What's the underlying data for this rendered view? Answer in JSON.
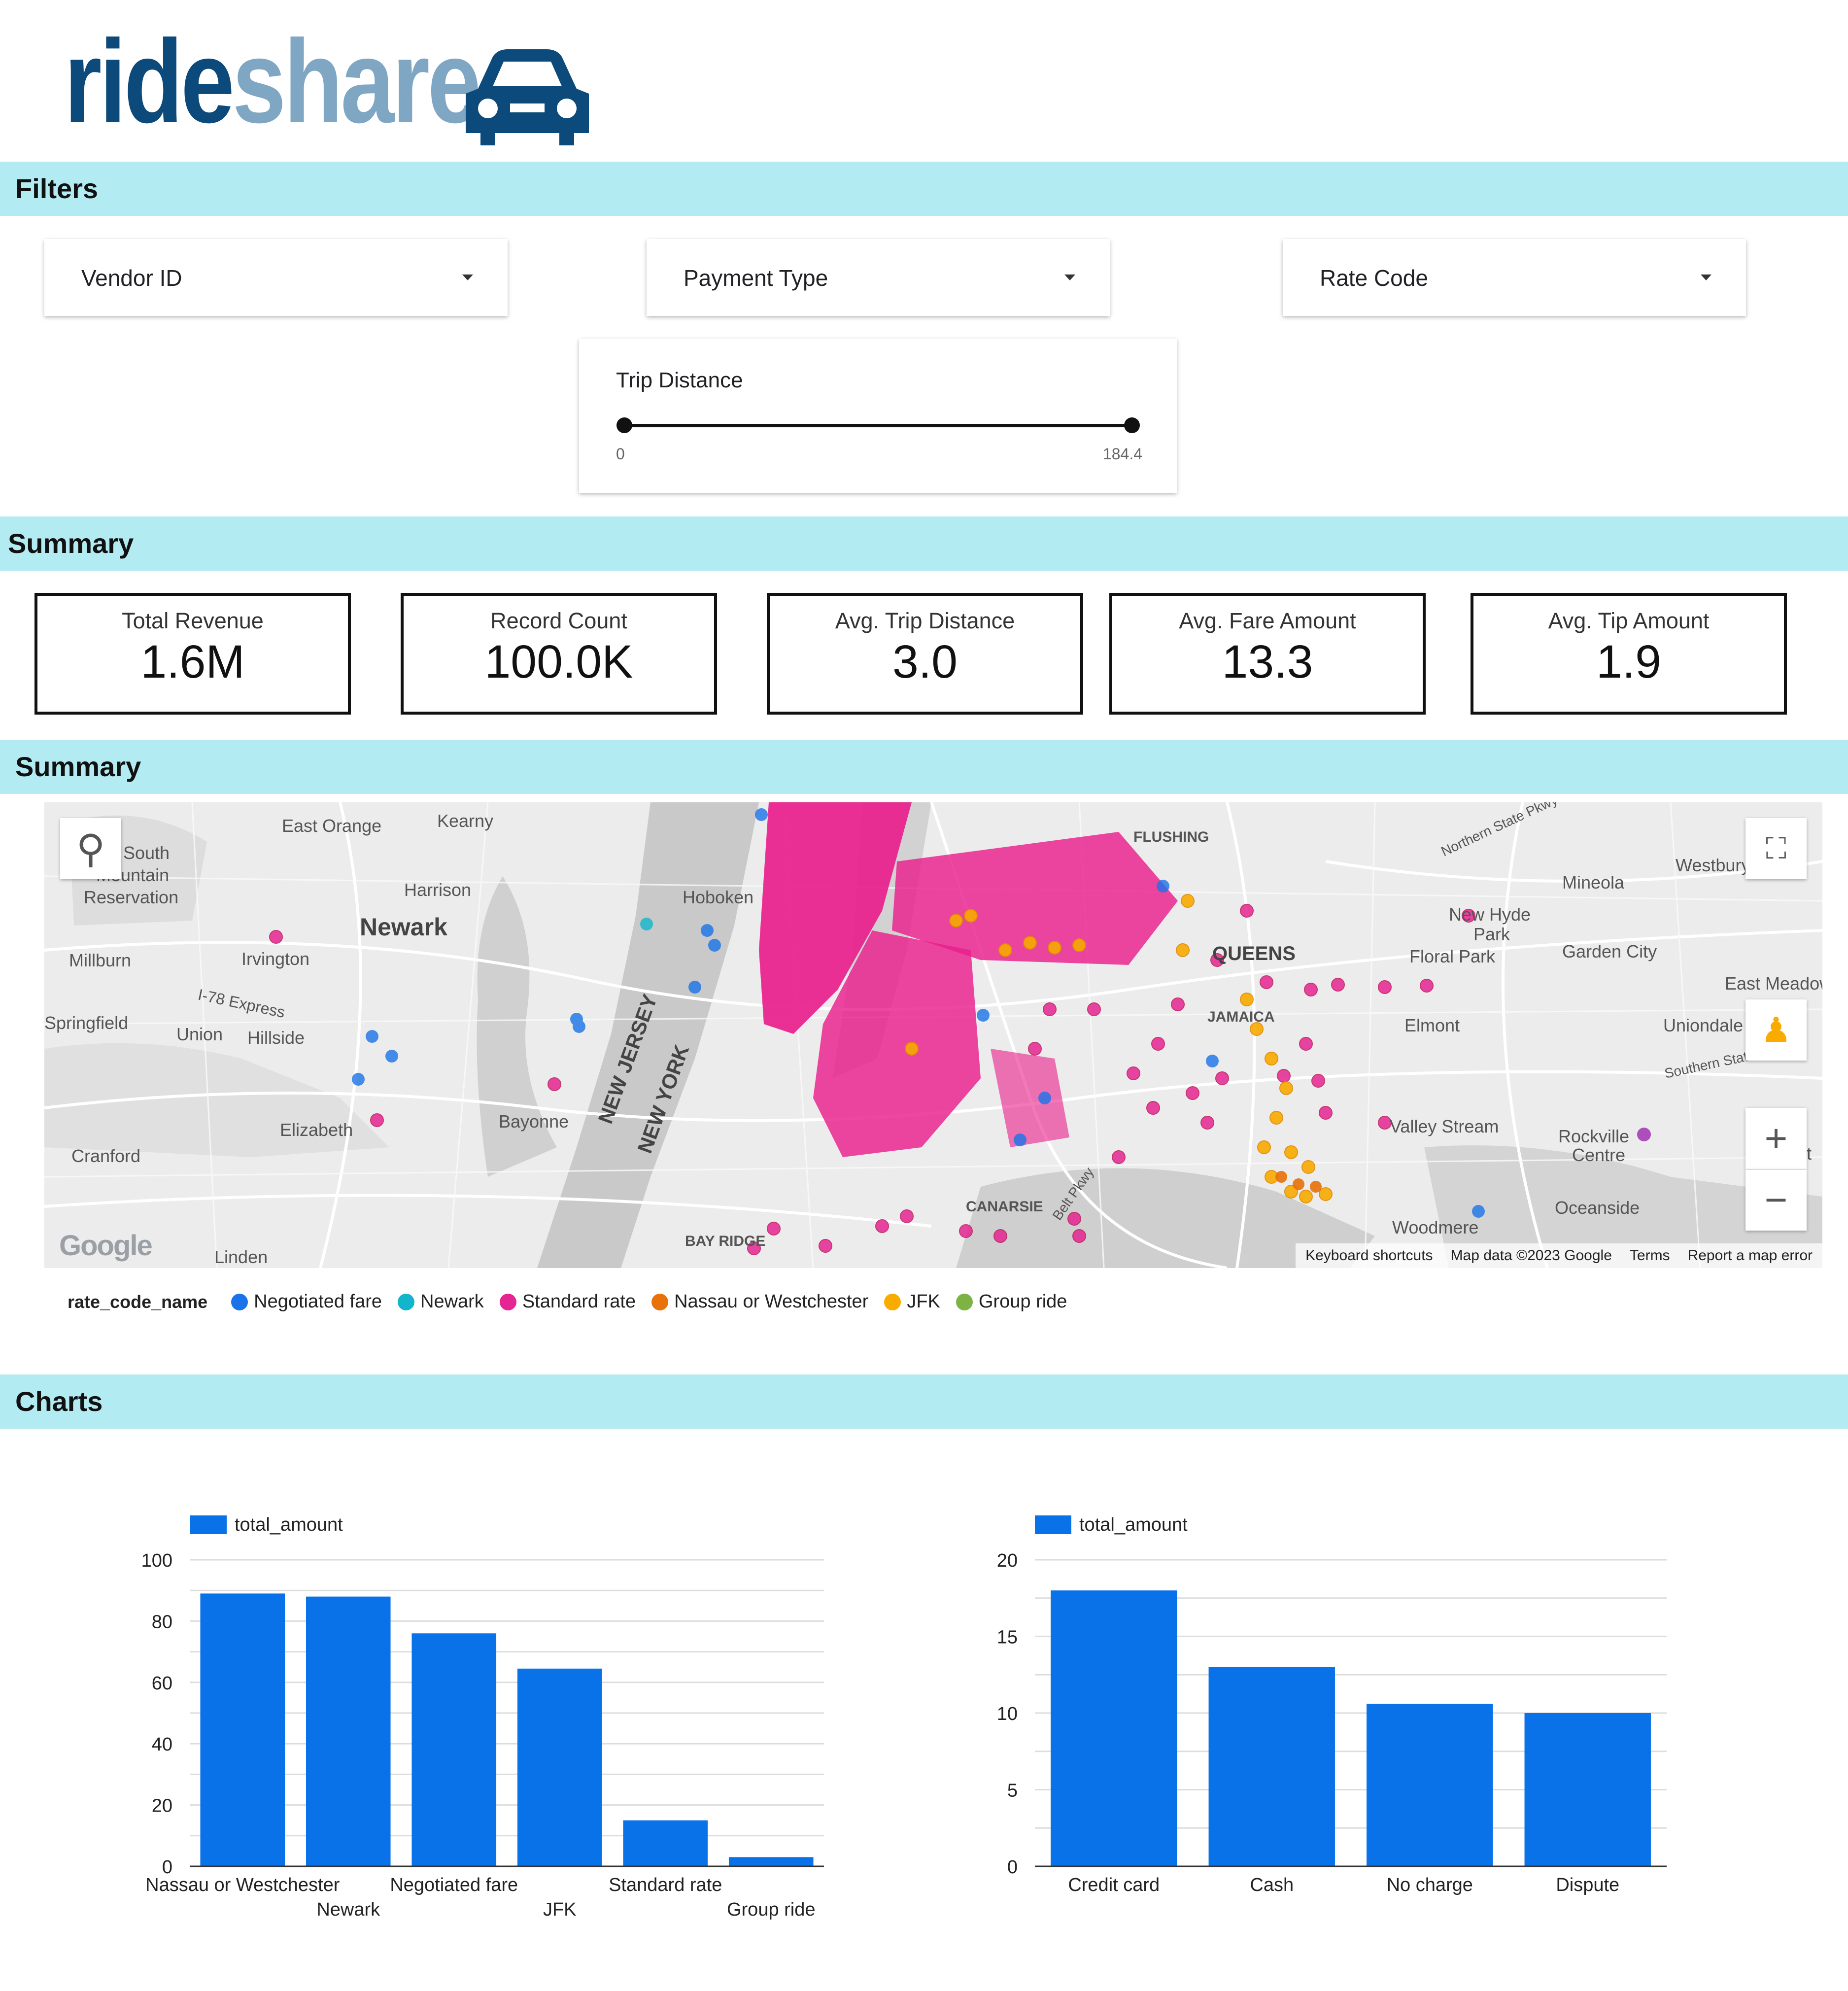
{
  "logo": {
    "text_ride": "ride",
    "text_share": "share",
    "icon": "car-icon"
  },
  "sections": {
    "filters": "Filters",
    "summary1": "Summary",
    "summary2": "Summary",
    "charts": "Charts"
  },
  "filters": {
    "vendor": "Vendor ID",
    "payment": "Payment Type",
    "rate": "Rate Code",
    "trip_distance": {
      "label": "Trip Distance",
      "min": "0",
      "max": "184.4"
    }
  },
  "scorecards": [
    {
      "name": "Total Revenue",
      "value": "1.6M"
    },
    {
      "name": "Record Count",
      "value": "100.0K"
    },
    {
      "name": "Avg. Trip Distance",
      "value": "3.0"
    },
    {
      "name": "Avg. Fare Amount",
      "value": "13.3"
    },
    {
      "name": "Avg. Tip Amount",
      "value": "1.9"
    }
  ],
  "map": {
    "place_labels": [
      "East Orange",
      "Kearny",
      "South Mountain Reservation",
      "Harrison",
      "Newark",
      "Hoboken",
      "Irvington",
      "Millburn",
      "I-78 Express",
      "Union",
      "Hillside",
      "Springfield",
      "Elizabeth",
      "Bayonne",
      "Cranford",
      "Linden",
      "NEW JERSEY",
      "NEW YORK",
      "BAY RIDGE",
      "CANARSIE",
      "FLUSHING",
      "QUEENS",
      "JAMAICA",
      "Mineola",
      "New Hyde Park",
      "Floral Park",
      "Garden City",
      "Westbury",
      "East Meadow",
      "Elmont",
      "Uniondale",
      "Valley Stream",
      "Rockville Centre",
      "Freeport",
      "Oceanside",
      "Woodmere",
      "Northern State Pkwy",
      "Southern State Pkwy",
      "Belt Pkwy"
    ],
    "attribution": [
      "Keyboard shortcuts",
      "Map data ©2023 Google",
      "Terms",
      "Report a map error"
    ],
    "google": "Google",
    "controls": [
      "locate-icon",
      "fullscreen-icon",
      "pegman-icon",
      "zoom-in-icon",
      "zoom-out-icon"
    ]
  },
  "legend": {
    "title": "rate_code_name",
    "items": [
      {
        "label": "Negotiated fare",
        "color": "#1a73e8"
      },
      {
        "label": "Newark",
        "color": "#12b5cb"
      },
      {
        "label": "Standard rate",
        "color": "#e52592"
      },
      {
        "label": "Nassau or Westchester",
        "color": "#e8710a"
      },
      {
        "label": "JFK",
        "color": "#f9ab00"
      },
      {
        "label": "Group ride",
        "color": "#7cb342"
      }
    ]
  },
  "chart_data": [
    {
      "type": "bar",
      "legend": "total_amount",
      "color": "#0a72e9",
      "categories": [
        "Nassau or Westchester",
        "Newark",
        "Negotiated fare",
        "JFK",
        "Standard rate",
        "Group ride"
      ],
      "values": [
        89,
        88,
        76,
        64.5,
        15,
        3
      ],
      "ylim": [
        0,
        100
      ],
      "yticks": [
        0,
        20,
        40,
        60,
        80,
        100
      ]
    },
    {
      "type": "bar",
      "legend": "total_amount",
      "color": "#0a72e9",
      "categories": [
        "Credit card",
        "Cash",
        "No charge",
        "Dispute"
      ],
      "values": [
        18,
        13,
        10.6,
        10
      ],
      "ylim": [
        0,
        20
      ],
      "yticks": [
        0,
        5,
        10,
        15,
        20
      ]
    }
  ]
}
